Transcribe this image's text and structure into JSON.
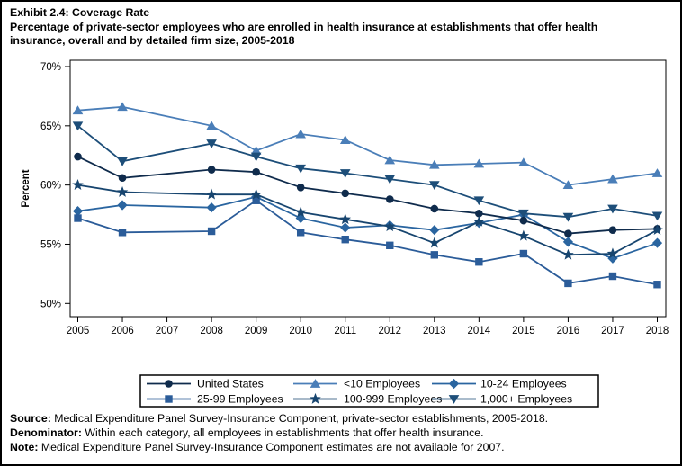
{
  "header": {
    "line1": "Exhibit 2.4: Coverage Rate",
    "line2": "Percentage of private-sector employees who are enrolled in health insurance at establishments that offer health",
    "line3": "insurance, overall and by detailed firm size, 2005-2018"
  },
  "chart_data": {
    "type": "line",
    "title": "Exhibit 2.4: Coverage Rate",
    "subtitle": "Percentage of private-sector employees who are enrolled in health insurance at establishments that offer health insurance, overall and by detailed firm size, 2005-2018",
    "xlabel": "",
    "ylabel": "Percent",
    "ylim": [
      50,
      70
    ],
    "ytick_step": 5,
    "ytick_suffix": "%",
    "grid": false,
    "legend_position": "bottom",
    "missing_years": [
      2007
    ],
    "x": [
      2005,
      2006,
      2007,
      2008,
      2009,
      2010,
      2011,
      2012,
      2013,
      2014,
      2015,
      2016,
      2017,
      2018
    ],
    "series": [
      {
        "name": "United States",
        "marker": "circle",
        "color": "#0f2b4c",
        "values": [
          62.4,
          60.6,
          null,
          61.3,
          61.1,
          59.8,
          59.3,
          58.8,
          58.0,
          57.6,
          57.0,
          55.9,
          56.2,
          56.3
        ]
      },
      {
        "name": "<10 Employees",
        "marker": "triangle-up",
        "color": "#4a7eb8",
        "values": [
          66.3,
          66.6,
          null,
          65.0,
          62.9,
          64.3,
          63.8,
          62.1,
          61.7,
          61.8,
          61.9,
          60.0,
          60.5,
          61.0
        ]
      },
      {
        "name": "10-24 Employees",
        "marker": "diamond",
        "color": "#2a65a0",
        "values": [
          57.8,
          58.3,
          null,
          58.1,
          59.0,
          57.2,
          56.4,
          56.6,
          56.2,
          56.8,
          57.5,
          55.2,
          53.8,
          55.1
        ]
      },
      {
        "name": "25-99 Employees",
        "marker": "square",
        "color": "#2b5c99",
        "values": [
          57.2,
          56.0,
          null,
          56.1,
          58.7,
          56.0,
          55.4,
          54.9,
          54.1,
          53.5,
          54.2,
          51.7,
          52.3,
          51.6
        ]
      },
      {
        "name": "100-999 Employees",
        "marker": "star",
        "color": "#17456f",
        "values": [
          60.0,
          59.4,
          null,
          59.2,
          59.2,
          57.7,
          57.1,
          56.5,
          55.1,
          56.9,
          55.7,
          54.1,
          54.2,
          56.2
        ]
      },
      {
        "name": "1,000+ Employees",
        "marker": "triangle-down",
        "color": "#1d4e79",
        "values": [
          65.0,
          62.0,
          null,
          63.5,
          62.4,
          61.4,
          61.0,
          60.5,
          60.0,
          58.7,
          57.6,
          57.3,
          58.0,
          57.4
        ]
      }
    ]
  },
  "footnotes": [
    {
      "label": "Source:",
      "text": " Medical Expenditure Panel Survey-Insurance Component, private-sector establishments, 2005-2018."
    },
    {
      "label": "Denominator:",
      "text": " Within each category, all employees in establishments that offer health insurance."
    },
    {
      "label": "Note:",
      "text": " Medical Expenditure Panel Survey-Insurance Component estimates are not available for 2007."
    }
  ]
}
